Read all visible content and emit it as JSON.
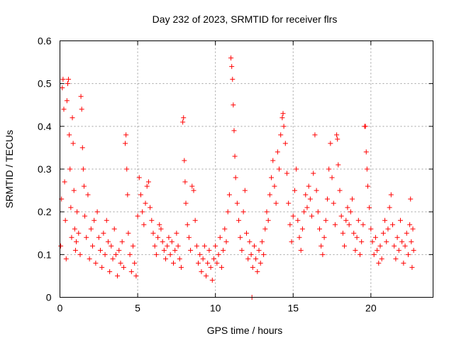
{
  "chart_data": {
    "type": "scatter",
    "title": "Day 232 of 2023, SRMTID for receiver flrs",
    "xlabel": "GPS time / hours",
    "ylabel": "SRMTID / TECUs",
    "xlim": [
      0,
      24
    ],
    "ylim": [
      0,
      0.6
    ],
    "xticks": [
      0,
      5,
      10,
      15,
      20
    ],
    "yticks": [
      0,
      0.1,
      0.2,
      0.3,
      0.4,
      0.5,
      0.6
    ],
    "xtick_labels": [
      "0",
      "5",
      "10",
      "15",
      "20"
    ],
    "ytick_labels": [
      "0",
      "0.1",
      "0.2",
      "0.3",
      "0.4",
      "0.5",
      "0.6"
    ],
    "grid": true,
    "marker": "+",
    "color": "#ff0000",
    "series": [
      {
        "name": "flrs",
        "points": [
          [
            0.05,
            0.12
          ],
          [
            0.1,
            0.23
          ],
          [
            0.15,
            0.49
          ],
          [
            0.2,
            0.51
          ],
          [
            0.25,
            0.44
          ],
          [
            0.3,
            0.27
          ],
          [
            0.35,
            0.18
          ],
          [
            0.4,
            0.09
          ],
          [
            0.45,
            0.46
          ],
          [
            0.5,
            0.5
          ],
          [
            0.55,
            0.51
          ],
          [
            0.6,
            0.38
          ],
          [
            0.65,
            0.3
          ],
          [
            0.7,
            0.21
          ],
          [
            0.75,
            0.14
          ],
          [
            0.8,
            0.42
          ],
          [
            0.85,
            0.36
          ],
          [
            0.9,
            0.25
          ],
          [
            0.95,
            0.16
          ],
          [
            1.0,
            0.11
          ],
          [
            1.05,
            0.13
          ],
          [
            1.1,
            0.2
          ],
          [
            1.2,
            0.15
          ],
          [
            1.3,
            0.1
          ],
          [
            1.35,
            0.47
          ],
          [
            1.4,
            0.44
          ],
          [
            1.45,
            0.35
          ],
          [
            1.5,
            0.3
          ],
          [
            1.55,
            0.26
          ],
          [
            1.6,
            0.19
          ],
          [
            1.7,
            0.14
          ],
          [
            1.8,
            0.24
          ],
          [
            1.9,
            0.09
          ],
          [
            2.0,
            0.16
          ],
          [
            2.1,
            0.12
          ],
          [
            2.2,
            0.18
          ],
          [
            2.3,
            0.08
          ],
          [
            2.4,
            0.2
          ],
          [
            2.5,
            0.14
          ],
          [
            2.6,
            0.11
          ],
          [
            2.7,
            0.07
          ],
          [
            2.8,
            0.15
          ],
          [
            2.9,
            0.1
          ],
          [
            3.0,
            0.18
          ],
          [
            3.1,
            0.13
          ],
          [
            3.2,
            0.06
          ],
          [
            3.3,
            0.12
          ],
          [
            3.4,
            0.09
          ],
          [
            3.5,
            0.16
          ],
          [
            3.6,
            0.1
          ],
          [
            3.7,
            0.05
          ],
          [
            3.8,
            0.11
          ],
          [
            3.9,
            0.08
          ],
          [
            4.0,
            0.13
          ],
          [
            4.1,
            0.07
          ],
          [
            4.2,
            0.36
          ],
          [
            4.25,
            0.38
          ],
          [
            4.3,
            0.3
          ],
          [
            4.35,
            0.24
          ],
          [
            4.4,
            0.15
          ],
          [
            4.5,
            0.1
          ],
          [
            4.6,
            0.06
          ],
          [
            4.7,
            0.12
          ],
          [
            4.8,
            0.08
          ],
          [
            4.9,
            0.05
          ],
          [
            5.0,
            0.19
          ],
          [
            5.1,
            0.28
          ],
          [
            5.2,
            0.24
          ],
          [
            5.3,
            0.2
          ],
          [
            5.4,
            0.17
          ],
          [
            5.5,
            0.22
          ],
          [
            5.6,
            0.26
          ],
          [
            5.7,
            0.27
          ],
          [
            5.8,
            0.21
          ],
          [
            5.9,
            0.18
          ],
          [
            6.0,
            0.15
          ],
          [
            6.1,
            0.12
          ],
          [
            6.2,
            0.1
          ],
          [
            6.3,
            0.14
          ],
          [
            6.4,
            0.17
          ],
          [
            6.5,
            0.16
          ],
          [
            6.6,
            0.13
          ],
          [
            6.7,
            0.11
          ],
          [
            6.8,
            0.09
          ],
          [
            6.9,
            0.12
          ],
          [
            7.0,
            0.14
          ],
          [
            7.1,
            0.1
          ],
          [
            7.2,
            0.13
          ],
          [
            7.3,
            0.08
          ],
          [
            7.4,
            0.11
          ],
          [
            7.5,
            0.15
          ],
          [
            7.6,
            0.12
          ],
          [
            7.7,
            0.09
          ],
          [
            7.8,
            0.07
          ],
          [
            7.9,
            0.41
          ],
          [
            7.95,
            0.42
          ],
          [
            8.0,
            0.32
          ],
          [
            8.05,
            0.27
          ],
          [
            8.1,
            0.22
          ],
          [
            8.2,
            0.17
          ],
          [
            8.3,
            0.14
          ],
          [
            8.4,
            0.11
          ],
          [
            8.5,
            0.26
          ],
          [
            8.6,
            0.25
          ],
          [
            8.7,
            0.18
          ],
          [
            8.8,
            0.12
          ],
          [
            8.9,
            0.08
          ],
          [
            9.0,
            0.1
          ],
          [
            9.1,
            0.06
          ],
          [
            9.2,
            0.09
          ],
          [
            9.3,
            0.12
          ],
          [
            9.4,
            0.05
          ],
          [
            9.5,
            0.08
          ],
          [
            9.6,
            0.11
          ],
          [
            9.7,
            0.07
          ],
          [
            9.8,
            0.04
          ],
          [
            9.9,
            0.09
          ],
          [
            10.0,
            0.12
          ],
          [
            10.1,
            0.08
          ],
          [
            10.2,
            0.1
          ],
          [
            10.3,
            0.14
          ],
          [
            10.4,
            0.07
          ],
          [
            10.5,
            0.11
          ],
          [
            10.6,
            0.16
          ],
          [
            10.7,
            0.13
          ],
          [
            10.8,
            0.2
          ],
          [
            10.9,
            0.24
          ],
          [
            11.0,
            0.56
          ],
          [
            11.05,
            0.54
          ],
          [
            11.1,
            0.51
          ],
          [
            11.15,
            0.45
          ],
          [
            11.2,
            0.39
          ],
          [
            11.25,
            0.33
          ],
          [
            11.3,
            0.28
          ],
          [
            11.4,
            0.22
          ],
          [
            11.5,
            0.18
          ],
          [
            11.6,
            0.14
          ],
          [
            11.7,
            0.11
          ],
          [
            11.8,
            0.2
          ],
          [
            11.9,
            0.25
          ],
          [
            12.0,
            0.15
          ],
          [
            12.1,
            0.09
          ],
          [
            12.2,
            0.13
          ],
          [
            12.3,
            0.1
          ],
          [
            12.35,
            0.0
          ],
          [
            12.4,
            0.07
          ],
          [
            12.5,
            0.12
          ],
          [
            12.6,
            0.09
          ],
          [
            12.7,
            0.06
          ],
          [
            12.8,
            0.11
          ],
          [
            12.9,
            0.08
          ],
          [
            13.0,
            0.13
          ],
          [
            13.1,
            0.1
          ],
          [
            13.2,
            0.16
          ],
          [
            13.3,
            0.2
          ],
          [
            13.4,
            0.18
          ],
          [
            13.5,
            0.24
          ],
          [
            13.6,
            0.28
          ],
          [
            13.7,
            0.32
          ],
          [
            13.8,
            0.26
          ],
          [
            13.9,
            0.22
          ],
          [
            14.0,
            0.34
          ],
          [
            14.1,
            0.3
          ],
          [
            14.2,
            0.38
          ],
          [
            14.3,
            0.42
          ],
          [
            14.35,
            0.43
          ],
          [
            14.4,
            0.4
          ],
          [
            14.5,
            0.36
          ],
          [
            14.6,
            0.29
          ],
          [
            14.7,
            0.22
          ],
          [
            14.8,
            0.17
          ],
          [
            14.9,
            0.13
          ],
          [
            15.0,
            0.19
          ],
          [
            15.1,
            0.25
          ],
          [
            15.2,
            0.3
          ],
          [
            15.3,
            0.18
          ],
          [
            15.4,
            0.14
          ],
          [
            15.5,
            0.11
          ],
          [
            15.6,
            0.16
          ],
          [
            15.7,
            0.2
          ],
          [
            15.8,
            0.24
          ],
          [
            15.9,
            0.21
          ],
          [
            16.0,
            0.26
          ],
          [
            16.1,
            0.23
          ],
          [
            16.2,
            0.19
          ],
          [
            16.3,
            0.29
          ],
          [
            16.4,
            0.38
          ],
          [
            16.5,
            0.25
          ],
          [
            16.6,
            0.2
          ],
          [
            16.7,
            0.16
          ],
          [
            16.8,
            0.12
          ],
          [
            16.9,
            0.1
          ],
          [
            17.0,
            0.14
          ],
          [
            17.1,
            0.18
          ],
          [
            17.2,
            0.23
          ],
          [
            17.3,
            0.3
          ],
          [
            17.4,
            0.36
          ],
          [
            17.5,
            0.28
          ],
          [
            17.6,
            0.22
          ],
          [
            17.7,
            0.17
          ],
          [
            17.8,
            0.38
          ],
          [
            17.85,
            0.37
          ],
          [
            17.9,
            0.31
          ],
          [
            18.0,
            0.25
          ],
          [
            18.1,
            0.19
          ],
          [
            18.2,
            0.15
          ],
          [
            18.3,
            0.12
          ],
          [
            18.4,
            0.18
          ],
          [
            18.5,
            0.21
          ],
          [
            18.6,
            0.17
          ],
          [
            18.7,
            0.2
          ],
          [
            18.8,
            0.23
          ],
          [
            18.9,
            0.15
          ],
          [
            19.0,
            0.11
          ],
          [
            19.1,
            0.14
          ],
          [
            19.2,
            0.18
          ],
          [
            19.3,
            0.1
          ],
          [
            19.4,
            0.13
          ],
          [
            19.5,
            0.17
          ],
          [
            19.6,
            0.4
          ],
          [
            19.65,
            0.4
          ],
          [
            19.7,
            0.34
          ],
          [
            19.75,
            0.3
          ],
          [
            19.8,
            0.26
          ],
          [
            19.9,
            0.21
          ],
          [
            20.0,
            0.16
          ],
          [
            20.1,
            0.13
          ],
          [
            20.2,
            0.1
          ],
          [
            20.3,
            0.14
          ],
          [
            20.4,
            0.11
          ],
          [
            20.5,
            0.08
          ],
          [
            20.6,
            0.12
          ],
          [
            20.7,
            0.09
          ],
          [
            20.8,
            0.15
          ],
          [
            20.9,
            0.18
          ],
          [
            21.0,
            0.13
          ],
          [
            21.1,
            0.16
          ],
          [
            21.2,
            0.21
          ],
          [
            21.3,
            0.24
          ],
          [
            21.4,
            0.17
          ],
          [
            21.5,
            0.12
          ],
          [
            21.6,
            0.09
          ],
          [
            21.7,
            0.14
          ],
          [
            21.8,
            0.11
          ],
          [
            21.9,
            0.18
          ],
          [
            22.0,
            0.13
          ],
          [
            22.1,
            0.08
          ],
          [
            22.2,
            0.12
          ],
          [
            22.3,
            0.15
          ],
          [
            22.4,
            0.1
          ],
          [
            22.5,
            0.17
          ],
          [
            22.55,
            0.23
          ],
          [
            22.6,
            0.13
          ],
          [
            22.65,
            0.07
          ],
          [
            22.7,
            0.16
          ],
          [
            22.75,
            0.11
          ]
        ]
      }
    ]
  }
}
